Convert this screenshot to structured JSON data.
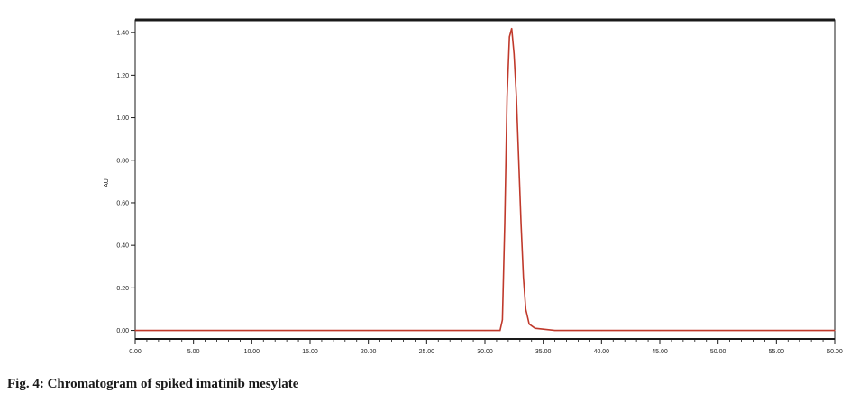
{
  "caption": "Fig. 4: Chromatogram of spiked imatinib mesylate",
  "chart_data": {
    "type": "line",
    "xlabel": "",
    "ylabel": "AU",
    "xlim": [
      0,
      60
    ],
    "ylim": [
      -0.04,
      1.46
    ],
    "x_ticks": [
      0,
      5,
      10,
      15,
      20,
      25,
      30,
      35,
      40,
      45,
      50,
      55,
      60
    ],
    "x_tick_labels": [
      "0.00",
      "5.00",
      "10.00",
      "15.00",
      "20.00",
      "25.00",
      "30.00",
      "35.00",
      "40.00",
      "45.00",
      "50.00",
      "55.00",
      "60.00"
    ],
    "y_ticks": [
      0,
      0.2,
      0.4,
      0.6,
      0.8,
      1.0,
      1.2,
      1.4
    ],
    "y_tick_labels": [
      "0.00",
      "0.20",
      "0.40",
      "0.60",
      "0.80",
      "1.00",
      "1.20",
      "1.40"
    ],
    "grid": false,
    "series": [
      {
        "color": "#c0392b",
        "x": [
          0,
          5,
          10,
          15,
          20,
          25,
          30,
          31.3,
          31.5,
          31.7,
          31.9,
          32.1,
          32.3,
          32.5,
          32.7,
          32.9,
          33.1,
          33.3,
          33.5,
          33.8,
          34.3,
          36,
          40,
          45,
          50,
          55,
          60
        ],
        "values": [
          0.0,
          0.0,
          0.0,
          0.0,
          0.0,
          0.0,
          0.0,
          0.0,
          0.05,
          0.5,
          1.1,
          1.38,
          1.42,
          1.3,
          1.1,
          0.8,
          0.5,
          0.25,
          0.1,
          0.03,
          0.01,
          0.0,
          0.0,
          0.0,
          0.0,
          0.0,
          0.0
        ]
      }
    ]
  }
}
